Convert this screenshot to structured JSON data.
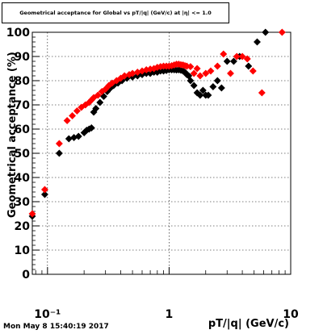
{
  "timestamp": "Mon May  8 15:40:19 2017",
  "colors": {
    "series_black": "#000000",
    "series_red": "#ff0000",
    "grid": "#000000"
  },
  "chart_data": {
    "type": "scatter",
    "title": "Geometrical acceptance for Global vs pT/|q| (GeV/c) at |η| <= 1.0",
    "xlabel": "pT/|q| (GeV/c)",
    "ylabel": "Geometrical acceptance (%)",
    "xscale": "log",
    "xlim": [
      0.075,
      10
    ],
    "ylim": [
      0,
      100
    ],
    "grid": true,
    "x_ticks": [
      {
        "value": 0.1,
        "label": "10⁻¹"
      },
      {
        "value": 1,
        "label": "1"
      },
      {
        "value": 10,
        "label": "10"
      }
    ],
    "y_ticks": [
      0,
      10,
      20,
      30,
      40,
      50,
      60,
      70,
      80,
      90,
      100
    ],
    "series": [
      {
        "color": "#000000",
        "marker": "diamond",
        "points": [
          [
            0.075,
            24
          ],
          [
            0.095,
            33
          ],
          [
            0.125,
            50
          ],
          [
            0.15,
            56
          ],
          [
            0.165,
            56.5
          ],
          [
            0.18,
            57
          ],
          [
            0.2,
            58.5
          ],
          [
            0.21,
            59.5
          ],
          [
            0.22,
            60
          ],
          [
            0.23,
            60.5
          ],
          [
            0.24,
            67
          ],
          [
            0.25,
            68.5
          ],
          [
            0.27,
            71
          ],
          [
            0.29,
            73.5
          ],
          [
            0.31,
            75.5
          ],
          [
            0.33,
            77
          ],
          [
            0.35,
            78
          ],
          [
            0.38,
            79
          ],
          [
            0.41,
            80
          ],
          [
            0.45,
            81
          ],
          [
            0.5,
            81.5
          ],
          [
            0.55,
            82
          ],
          [
            0.6,
            82.5
          ],
          [
            0.65,
            83
          ],
          [
            0.7,
            83
          ],
          [
            0.75,
            83.5
          ],
          [
            0.8,
            83.5
          ],
          [
            0.85,
            84
          ],
          [
            0.9,
            84
          ],
          [
            0.95,
            84.2
          ],
          [
            1.0,
            84.5
          ],
          [
            1.05,
            84.5
          ],
          [
            1.1,
            84.5
          ],
          [
            1.15,
            84.4
          ],
          [
            1.2,
            84.5
          ],
          [
            1.25,
            84.3
          ],
          [
            1.3,
            84
          ],
          [
            1.35,
            83.5
          ],
          [
            1.4,
            82.5
          ],
          [
            1.45,
            82
          ],
          [
            1.5,
            80
          ],
          [
            1.6,
            78
          ],
          [
            1.7,
            75
          ],
          [
            1.8,
            74
          ],
          [
            1.9,
            76
          ],
          [
            2.0,
            74
          ],
          [
            2.1,
            74
          ],
          [
            2.3,
            77.5
          ],
          [
            2.5,
            80
          ],
          [
            2.7,
            77
          ],
          [
            3.0,
            88
          ],
          [
            3.4,
            88
          ],
          [
            3.8,
            90
          ],
          [
            4.5,
            86
          ],
          [
            5.3,
            96
          ],
          [
            6.2,
            100
          ]
        ]
      },
      {
        "color": "#ff0000",
        "marker": "diamond",
        "points": [
          [
            0.075,
            25
          ],
          [
            0.095,
            35
          ],
          [
            0.125,
            54
          ],
          [
            0.145,
            63.5
          ],
          [
            0.16,
            65.5
          ],
          [
            0.175,
            67.5
          ],
          [
            0.19,
            69
          ],
          [
            0.205,
            70
          ],
          [
            0.22,
            71
          ],
          [
            0.23,
            72
          ],
          [
            0.24,
            73
          ],
          [
            0.26,
            74
          ],
          [
            0.28,
            75.5
          ],
          [
            0.3,
            76.5
          ],
          [
            0.32,
            78
          ],
          [
            0.34,
            79
          ],
          [
            0.37,
            80
          ],
          [
            0.4,
            81
          ],
          [
            0.43,
            82
          ],
          [
            0.47,
            82.5
          ],
          [
            0.5,
            83
          ],
          [
            0.55,
            83.5
          ],
          [
            0.6,
            84
          ],
          [
            0.65,
            84.5
          ],
          [
            0.7,
            84.8
          ],
          [
            0.75,
            85
          ],
          [
            0.8,
            85.5
          ],
          [
            0.85,
            85.8
          ],
          [
            0.9,
            86
          ],
          [
            0.95,
            86
          ],
          [
            1.0,
            86
          ],
          [
            1.05,
            86.2
          ],
          [
            1.1,
            86.5
          ],
          [
            1.15,
            86.8
          ],
          [
            1.2,
            86.8
          ],
          [
            1.25,
            86.6
          ],
          [
            1.3,
            86.5
          ],
          [
            1.35,
            86.2
          ],
          [
            1.4,
            86
          ],
          [
            1.5,
            85.8
          ],
          [
            1.6,
            83
          ],
          [
            1.7,
            85
          ],
          [
            1.8,
            82
          ],
          [
            2.0,
            83
          ],
          [
            2.2,
            84
          ],
          [
            2.5,
            86
          ],
          [
            2.8,
            91
          ],
          [
            3.2,
            83
          ],
          [
            3.6,
            90
          ],
          [
            4.0,
            90
          ],
          [
            4.4,
            89
          ],
          [
            4.9,
            84
          ],
          [
            5.8,
            75
          ],
          [
            8.5,
            100
          ]
        ]
      }
    ]
  }
}
